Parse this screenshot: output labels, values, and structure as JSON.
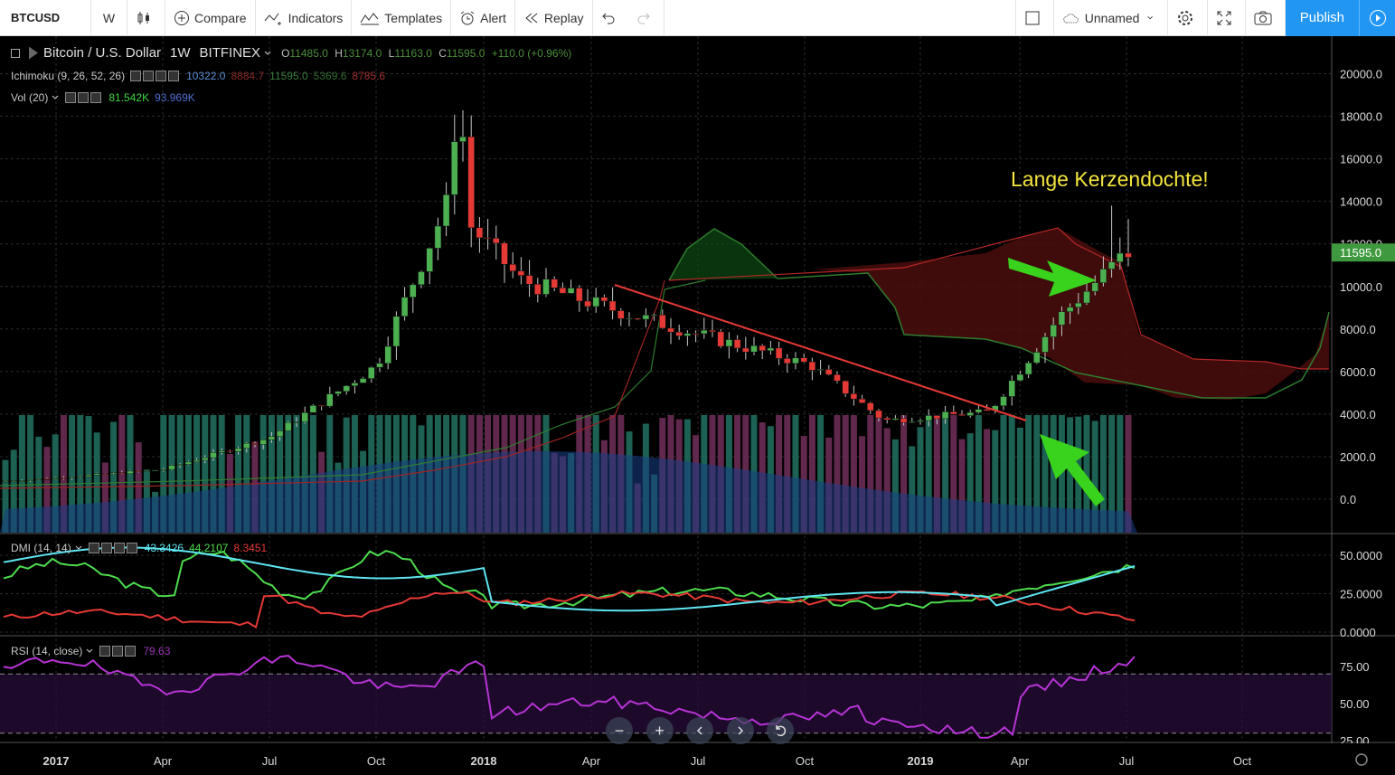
{
  "toolbar": {
    "symbol": "BTCUSD",
    "interval": "W",
    "compare": "Compare",
    "indicators": "Indicators",
    "templates": "Templates",
    "alert": "Alert",
    "replay": "Replay",
    "layout_name": "Unnamed",
    "publish": "Publish"
  },
  "legend": {
    "title": "Bitcoin / U.S. Dollar",
    "interval": "1W",
    "exchange": "BITFINEX",
    "open": "11485.0",
    "high": "13174.0",
    "low": "11163.0",
    "close": "11595.0",
    "change": "+110.0 (+0.96%)"
  },
  "ichimoku": {
    "label": "Ichimoku (9, 26, 52, 26)",
    "v1": "10322.0",
    "v2": "8884.7",
    "v3": "11595.0",
    "v4": "5369.6",
    "v5": "8785.6"
  },
  "volume": {
    "label": "Vol (20)",
    "v1": "81.542K",
    "v2": "93.969K"
  },
  "dmi": {
    "label": "DMI (14, 14)",
    "v1": "43.3426",
    "v2": "44.2107",
    "v3": "8.3451"
  },
  "rsi": {
    "label": "RSI (14, close)",
    "v1": "79.63"
  },
  "annotation": "Lange Kerzendochte!",
  "price_axis": [
    "20000.0",
    "18000.0",
    "16000.0",
    "14000.0",
    "12000.0",
    "10000.0",
    "8000.0",
    "6000.0",
    "4000.0",
    "2000.0",
    "0.0"
  ],
  "last_price": "11595.0",
  "dmi_axis": [
    "50.0000",
    "25.0000",
    "0.0000"
  ],
  "rsi_axis": [
    "75.00",
    "50.00",
    "25.00"
  ],
  "time_axis": [
    "2017",
    "Apr",
    "Jul",
    "Oct",
    "2018",
    "Apr",
    "Jul",
    "Oct",
    "2019",
    "Apr",
    "Jul",
    "Oct"
  ],
  "colors": {
    "up": "#4caf50",
    "down": "#e53935",
    "kumo_bull": "#0d4a12",
    "kumo_bear": "#4a0d0d",
    "dmi_plus": "#4ddc4d",
    "dmi_minus": "#e53935",
    "adx": "#5ee6f2",
    "rsi": "#b733d6",
    "trend": "#e53935",
    "arrow": "#39d21d"
  },
  "chart_data": {
    "type": "candlestick",
    "series": [
      {
        "name": "BTCUSD",
        "close_by_month": [
          [
            "2017-01",
            1000
          ],
          [
            "2017-04",
            1400
          ],
          [
            "2017-07",
            2900
          ],
          [
            "2017-10",
            6300
          ],
          [
            "2017-12",
            14000
          ],
          [
            "2018-02",
            10300
          ],
          [
            "2018-04",
            9200
          ],
          [
            "2018-07",
            7700
          ],
          [
            "2018-10",
            6300
          ],
          [
            "2018-12",
            3700
          ],
          [
            "2019-03",
            4100
          ],
          [
            "2019-05",
            8500
          ],
          [
            "2019-07",
            11595
          ]
        ]
      }
    ],
    "ylim": [
      -1500,
      21000
    ]
  }
}
